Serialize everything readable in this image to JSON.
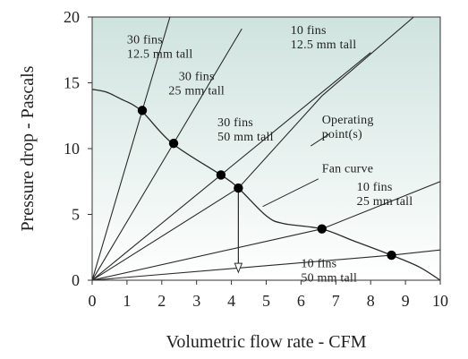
{
  "chart_data": {
    "type": "line",
    "xlabel": "Volumetric flow rate - CFM",
    "ylabel": "Pressure drop - Pascals",
    "xlim": [
      0,
      10
    ],
    "ylim": [
      0,
      20
    ],
    "x_ticks": [
      "0",
      "1",
      "2",
      "3",
      "4",
      "5",
      "6",
      "7",
      "8",
      "9",
      "10"
    ],
    "y_ticks": [
      "0",
      "5",
      "10",
      "15",
      "20"
    ],
    "grid": false,
    "background_gradient": [
      "#cfe3de",
      "#ffffff"
    ],
    "line_color": "#2a2a2a",
    "point_color": "#000000",
    "fan_curve": {
      "name": "Fan curve",
      "x": [
        0,
        0.4,
        0.8,
        1.4,
        2.3,
        3.7,
        4.2,
        5.0,
        5.5,
        6.6,
        7.5,
        8.6,
        9.4,
        10.0
      ],
      "y": [
        14.5,
        14.3,
        13.8,
        12.9,
        10.4,
        8.0,
        7.0,
        4.9,
        4.3,
        3.9,
        3.0,
        1.9,
        1.0,
        0.0
      ]
    },
    "system_curves": [
      {
        "label": [
          "30 fins",
          "12.5 mm tall"
        ],
        "x": [
          0,
          1.44,
          2.3
        ],
        "y": [
          0,
          12.9,
          20.6
        ]
      },
      {
        "label": [
          "30 fins",
          "25 mm tall"
        ],
        "x": [
          0,
          2.34,
          4.3
        ],
        "y": [
          0,
          10.4,
          19.11
        ]
      },
      {
        "label": [
          "30 fins",
          "50 mm tall"
        ],
        "x": [
          0,
          3.7,
          8.0
        ],
        "y": [
          0,
          8.0,
          17.3
        ]
      },
      {
        "label": [
          "10 fins",
          "12.5 mm tall"
        ],
        "x": [
          0,
          4.2,
          6.6,
          9.5
        ],
        "y": [
          0,
          7.0,
          14.0,
          20.6
        ]
      },
      {
        "label": [
          "10 fins",
          "25 mm tall"
        ],
        "x": [
          0,
          6.6,
          10.0
        ],
        "y": [
          0,
          3.9,
          7.5
        ]
      },
      {
        "label": [
          "10 fins",
          "50 mm tall"
        ],
        "x": [
          0,
          8.6,
          10.0
        ],
        "y": [
          0,
          1.9,
          2.3
        ]
      }
    ],
    "operating_points": [
      {
        "x": 1.44,
        "y": 12.9
      },
      {
        "x": 2.34,
        "y": 10.4
      },
      {
        "x": 3.7,
        "y": 8.0
      },
      {
        "x": 4.2,
        "y": 7.0
      },
      {
        "x": 6.6,
        "y": 3.9
      },
      {
        "x": 8.6,
        "y": 1.9
      }
    ],
    "drop_arrow": {
      "from": [
        4.2,
        7.0
      ],
      "to": [
        4.2,
        0.6
      ]
    },
    "annotations": [
      {
        "lines": [
          "30 fins",
          "12.5 mm tall"
        ],
        "at": [
          1.0,
          18.0
        ],
        "anchor": "start"
      },
      {
        "lines": [
          "30 fins",
          "25 mm tall"
        ],
        "at": [
          3.0,
          15.2
        ],
        "anchor": "middle"
      },
      {
        "lines": [
          "30 fins",
          "50 mm tall"
        ],
        "at": [
          3.6,
          11.7
        ],
        "anchor": "start"
      },
      {
        "lines": [
          "10 fins",
          "12.5 mm tall"
        ],
        "at": [
          5.7,
          18.7
        ],
        "anchor": "start"
      },
      {
        "lines": [
          "Operating",
          "point(s)"
        ],
        "at": [
          6.6,
          11.9
        ],
        "anchor": "start"
      },
      {
        "lines": [
          "Fan curve"
        ],
        "at": [
          6.6,
          8.2
        ],
        "anchor": "start"
      },
      {
        "lines": [
          "10 fins",
          "25 mm tall"
        ],
        "at": [
          7.6,
          6.8
        ],
        "anchor": "start"
      },
      {
        "lines": [
          "10 fins",
          "50 mm tall"
        ],
        "at": [
          6.0,
          1.0
        ],
        "anchor": "start"
      }
    ],
    "leaders": [
      {
        "from": [
          6.8,
          11.1
        ],
        "to": [
          6.28,
          10.2
        ]
      },
      {
        "from": [
          6.5,
          7.7
        ],
        "to": [
          4.9,
          5.6
        ]
      }
    ]
  }
}
